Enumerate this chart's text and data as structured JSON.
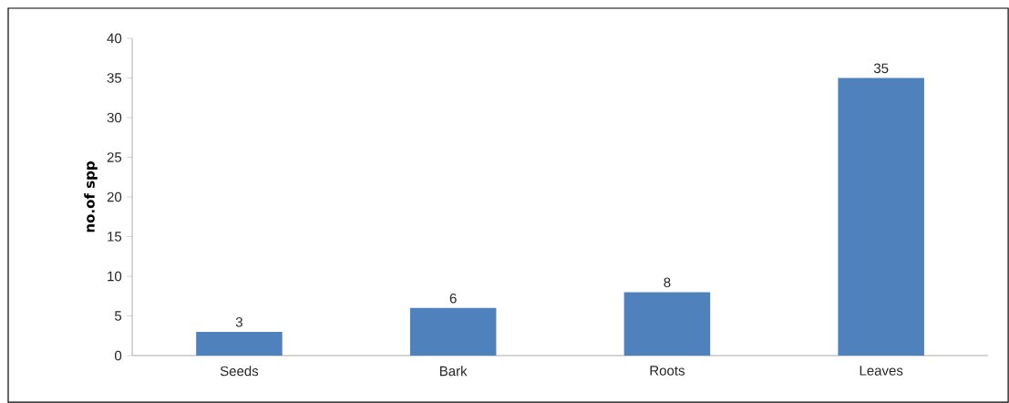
{
  "chart_data": {
    "type": "bar",
    "ylabel": "no.of spp",
    "categories": [
      "Seeds",
      "Bark",
      "Roots",
      "Leaves"
    ],
    "values": [
      3,
      6,
      8,
      35
    ],
    "color": "#4f81bd",
    "ylim": [
      0,
      40
    ],
    "yticks": [
      0,
      5,
      10,
      15,
      20,
      25,
      30,
      35,
      40
    ],
    "data_labels": true,
    "grid": false
  }
}
